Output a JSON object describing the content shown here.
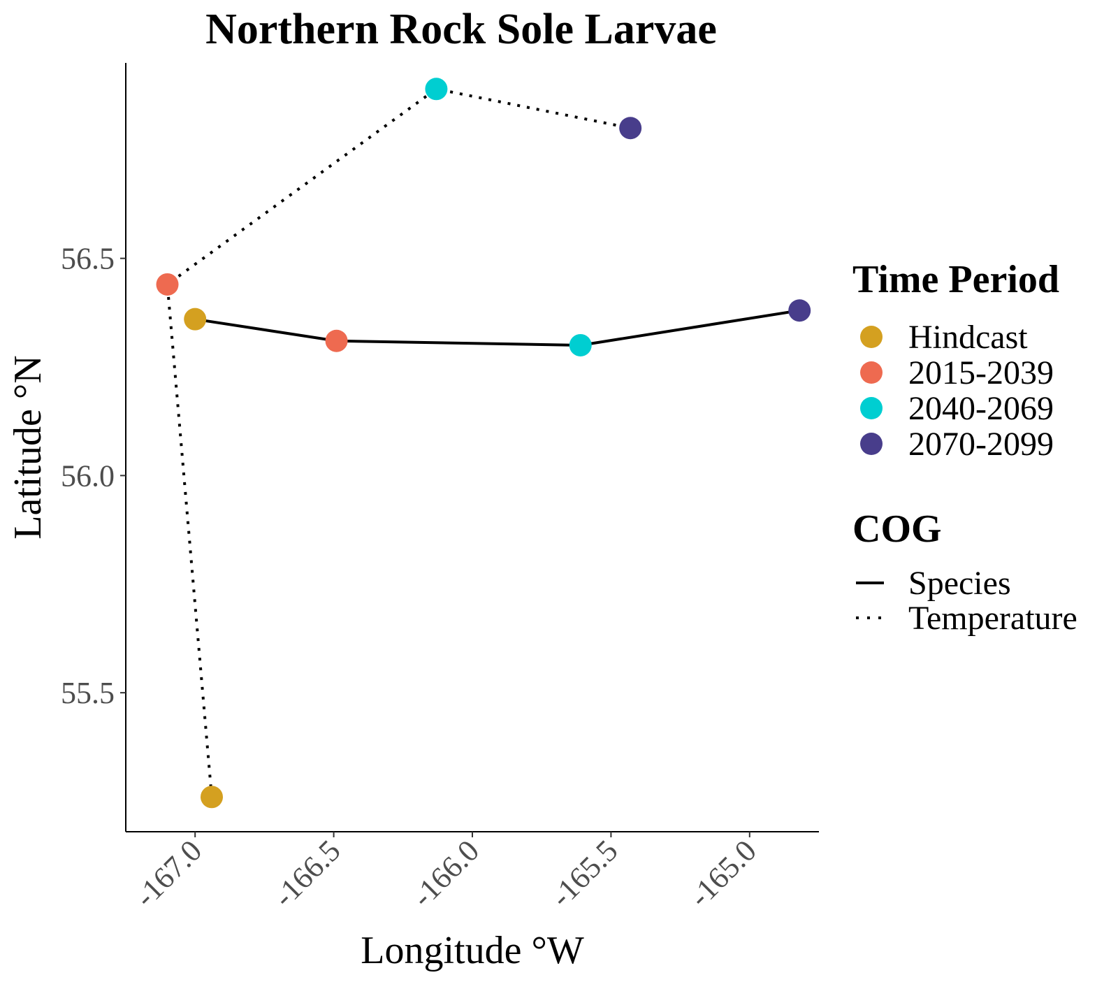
{
  "chart_data": {
    "type": "scatter",
    "title": "Northern Rock Sole Larvae",
    "xlabel": "Longitude °W",
    "ylabel": "Latitude °N",
    "xlim": [
      -167.25,
      -164.75
    ],
    "ylim": [
      55.18,
      56.95
    ],
    "x_ticks": [
      {
        "value": -167.0,
        "label": "-167.0"
      },
      {
        "value": -166.5,
        "label": "-166.5"
      },
      {
        "value": -166.0,
        "label": "-166.0"
      },
      {
        "value": -165.5,
        "label": "-165.5"
      },
      {
        "value": -165.0,
        "label": "-165.0"
      }
    ],
    "y_ticks": [
      {
        "value": 55.5,
        "label": "55.5"
      },
      {
        "value": 56.0,
        "label": "56.0"
      },
      {
        "value": 56.5,
        "label": "56.5"
      }
    ],
    "grid": false,
    "legend_position": "right",
    "time_period_legend": {
      "title": "Time Period",
      "entries": [
        {
          "name": "Hindcast",
          "color": "#D4A020"
        },
        {
          "name": "2015-2039",
          "color": "#EE6A50"
        },
        {
          "name": "2040-2069",
          "color": "#00CED1"
        },
        {
          "name": "2070-2099",
          "color": "#483D8B"
        }
      ]
    },
    "cog_legend": {
      "title": "COG",
      "entries": [
        {
          "name": "Species",
          "linetype": "solid"
        },
        {
          "name": "Temperature",
          "linetype": "dotted"
        }
      ]
    },
    "series": [
      {
        "name": "Species",
        "linetype": "solid",
        "points": [
          {
            "period": "Hindcast",
            "x": -167.0,
            "y": 56.36
          },
          {
            "period": "2015-2039",
            "x": -166.49,
            "y": 56.31
          },
          {
            "period": "2040-2069",
            "x": -165.61,
            "y": 56.3
          },
          {
            "period": "2070-2099",
            "x": -164.82,
            "y": 56.38
          }
        ]
      },
      {
        "name": "Temperature",
        "linetype": "dotted",
        "points": [
          {
            "period": "Hindcast",
            "x": -166.94,
            "y": 55.26
          },
          {
            "period": "2015-2039",
            "x": -167.1,
            "y": 56.44
          },
          {
            "period": "2040-2069",
            "x": -166.13,
            "y": 56.89
          },
          {
            "period": "2070-2099",
            "x": -165.43,
            "y": 56.8
          }
        ]
      }
    ]
  }
}
